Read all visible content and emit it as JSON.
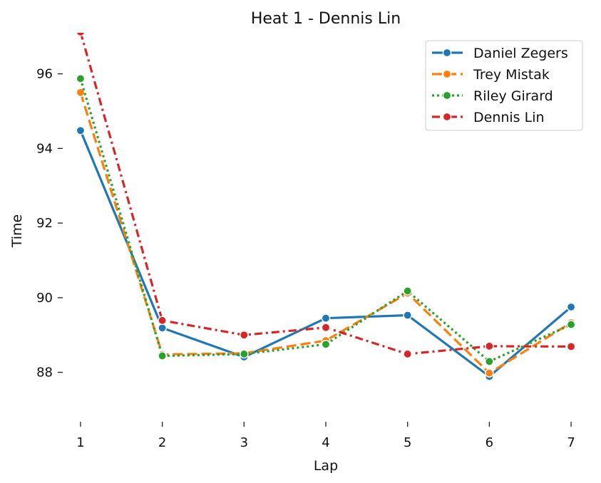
{
  "chart_data": {
    "type": "line",
    "title": "Heat 1 - Dennis Lin",
    "xlabel": "Lap",
    "ylabel": "Time",
    "x": [
      1,
      2,
      3,
      4,
      5,
      6,
      7
    ],
    "xlim": [
      0.8,
      7.2
    ],
    "ylim": [
      87.0,
      97.1
    ],
    "yticks": [
      88,
      90,
      92,
      94,
      96
    ],
    "grid": false,
    "legend_position": "top-right",
    "series": [
      {
        "name": "Daniel Zegers",
        "color": "#1f77b4",
        "dash": "solid",
        "values": [
          94.48,
          89.19,
          88.41,
          89.45,
          89.53,
          87.89,
          89.75
        ]
      },
      {
        "name": "Trey Mistak",
        "color": "#ff7f0e",
        "dash": "dashed",
        "values": [
          95.5,
          88.48,
          88.51,
          88.85,
          90.12,
          87.98,
          89.33
        ]
      },
      {
        "name": "Riley Girard",
        "color": "#2ca02c",
        "dash": "dotted",
        "values": [
          95.87,
          88.44,
          88.49,
          88.75,
          90.18,
          88.29,
          89.28
        ]
      },
      {
        "name": "Dennis Lin",
        "color": "#d62728",
        "dash": "dashdot",
        "values": [
          97.12,
          89.39,
          89.0,
          89.2,
          88.49,
          88.7,
          88.69
        ]
      }
    ]
  }
}
